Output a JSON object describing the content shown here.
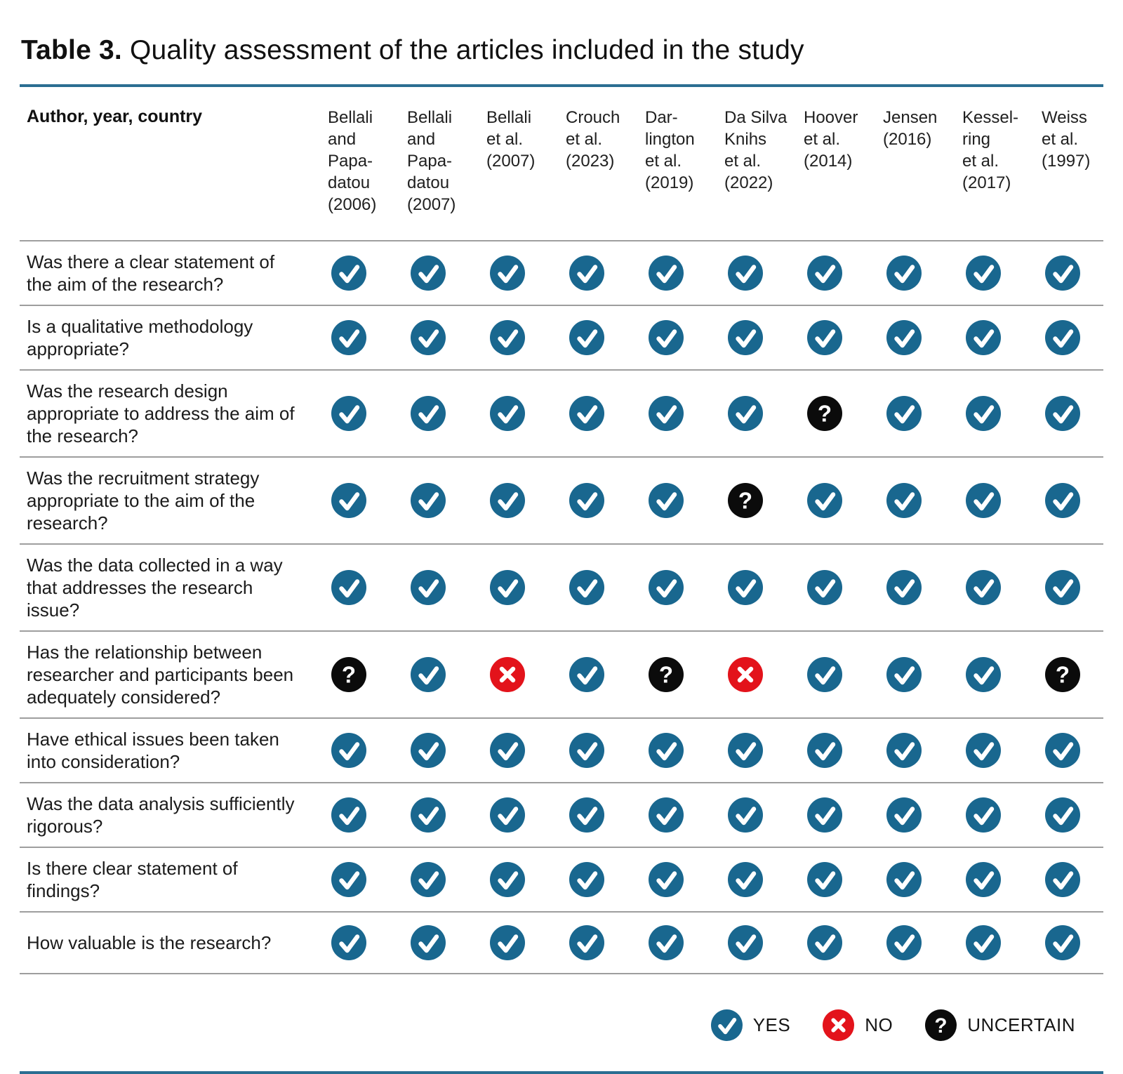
{
  "title": {
    "label": "Table 3.",
    "text": "Quality assessment of the articles included in the study"
  },
  "table": {
    "corner_header": "Author, year, country",
    "columns": [
      "Bellali\nand\nPapa-\ndatou\n(2006)",
      "Bellali\nand\nPapa-\ndatou\n(2007)",
      "Bellali\net al.\n(2007)",
      "Crouch\net al.\n(2023)",
      "Dar-\nlington\net al.\n(2019)",
      "Da Silva\nKnihs\net al.\n(2022)",
      "Hoover\net al.\n(2014)",
      "Jensen\n(2016)",
      "Kessel-\nring\net al.\n(2017)",
      "Weiss\net al.\n(1997)"
    ],
    "rows": [
      {
        "question": "Was there a clear statement of the aim of the research?",
        "answers": [
          "yes",
          "yes",
          "yes",
          "yes",
          "yes",
          "yes",
          "yes",
          "yes",
          "yes",
          "yes"
        ]
      },
      {
        "question": "Is a qualitative methodology appropriate?",
        "answers": [
          "yes",
          "yes",
          "yes",
          "yes",
          "yes",
          "yes",
          "yes",
          "yes",
          "yes",
          "yes"
        ]
      },
      {
        "question": "Was the research design appropriate to address the aim of the research?",
        "answers": [
          "yes",
          "yes",
          "yes",
          "yes",
          "yes",
          "yes",
          "uncertain",
          "yes",
          "yes",
          "yes"
        ]
      },
      {
        "question": "Was the recruitment strategy appropriate to the aim of the research?",
        "answers": [
          "yes",
          "yes",
          "yes",
          "yes",
          "yes",
          "uncertain",
          "yes",
          "yes",
          "yes",
          "yes"
        ]
      },
      {
        "question": "Was the data collected in a way that addresses the research issue?",
        "answers": [
          "yes",
          "yes",
          "yes",
          "yes",
          "yes",
          "yes",
          "yes",
          "yes",
          "yes",
          "yes"
        ]
      },
      {
        "question": "Has the relationship between researcher and participants been adequately considered?",
        "answers": [
          "uncertain",
          "yes",
          "no",
          "yes",
          "uncertain",
          "no",
          "yes",
          "yes",
          "yes",
          "uncertain"
        ]
      },
      {
        "question": "Have ethical issues been taken into consideration?",
        "answers": [
          "yes",
          "yes",
          "yes",
          "yes",
          "yes",
          "yes",
          "yes",
          "yes",
          "yes",
          "yes"
        ]
      },
      {
        "question": "Was the data analysis sufficiently rigorous?",
        "answers": [
          "yes",
          "yes",
          "yes",
          "yes",
          "yes",
          "yes",
          "yes",
          "yes",
          "yes",
          "yes"
        ]
      },
      {
        "question": "Is there clear statement of findings?",
        "answers": [
          "yes",
          "yes",
          "yes",
          "yes",
          "yes",
          "yes",
          "yes",
          "yes",
          "yes",
          "yes"
        ]
      },
      {
        "question": "How valuable is the research?",
        "answers": [
          "yes",
          "yes",
          "yes",
          "yes",
          "yes",
          "yes",
          "yes",
          "yes",
          "yes",
          "yes"
        ]
      }
    ]
  },
  "legend": [
    {
      "icon": "yes",
      "label": "YES"
    },
    {
      "icon": "no",
      "label": "NO"
    },
    {
      "icon": "uncertain",
      "label": "UNCERTAIN"
    }
  ],
  "colors": {
    "yes": "#19678F",
    "no": "#E3131B",
    "uncertain": "#0B0B0B",
    "rule": "#2B6E92",
    "separator": "#9E9E9E"
  }
}
